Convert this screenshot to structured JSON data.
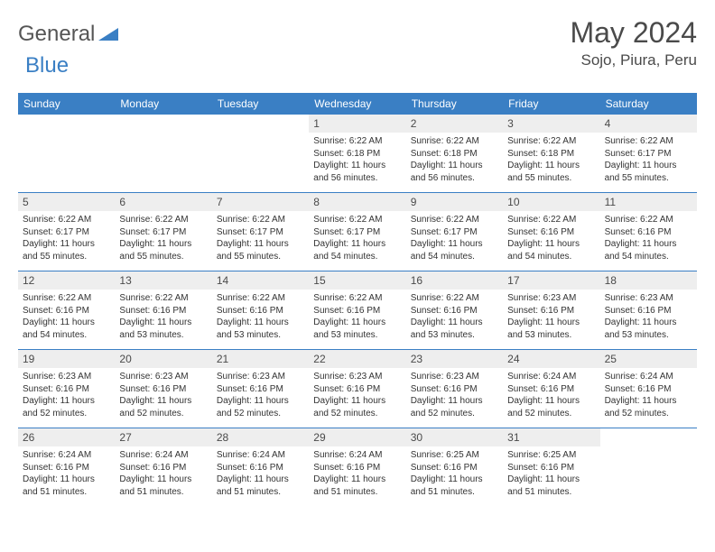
{
  "logo": {
    "part1": "General",
    "part2": "Blue"
  },
  "header": {
    "month_title": "May 2024",
    "location": "Sojo, Piura, Peru"
  },
  "colors": {
    "brand_blue": "#3a7fc4",
    "gray_bg": "#eeeeee",
    "text": "#333333",
    "white": "#ffffff"
  },
  "days_of_week": [
    "Sunday",
    "Monday",
    "Tuesday",
    "Wednesday",
    "Thursday",
    "Friday",
    "Saturday"
  ],
  "cells": [
    {
      "day": "",
      "sunrise": "",
      "sunset": "",
      "daylight": ""
    },
    {
      "day": "",
      "sunrise": "",
      "sunset": "",
      "daylight": ""
    },
    {
      "day": "",
      "sunrise": "",
      "sunset": "",
      "daylight": ""
    },
    {
      "day": "1",
      "sunrise": "Sunrise: 6:22 AM",
      "sunset": "Sunset: 6:18 PM",
      "daylight": "Daylight: 11 hours and 56 minutes."
    },
    {
      "day": "2",
      "sunrise": "Sunrise: 6:22 AM",
      "sunset": "Sunset: 6:18 PM",
      "daylight": "Daylight: 11 hours and 56 minutes."
    },
    {
      "day": "3",
      "sunrise": "Sunrise: 6:22 AM",
      "sunset": "Sunset: 6:18 PM",
      "daylight": "Daylight: 11 hours and 55 minutes."
    },
    {
      "day": "4",
      "sunrise": "Sunrise: 6:22 AM",
      "sunset": "Sunset: 6:17 PM",
      "daylight": "Daylight: 11 hours and 55 minutes."
    },
    {
      "day": "5",
      "sunrise": "Sunrise: 6:22 AM",
      "sunset": "Sunset: 6:17 PM",
      "daylight": "Daylight: 11 hours and 55 minutes."
    },
    {
      "day": "6",
      "sunrise": "Sunrise: 6:22 AM",
      "sunset": "Sunset: 6:17 PM",
      "daylight": "Daylight: 11 hours and 55 minutes."
    },
    {
      "day": "7",
      "sunrise": "Sunrise: 6:22 AM",
      "sunset": "Sunset: 6:17 PM",
      "daylight": "Daylight: 11 hours and 55 minutes."
    },
    {
      "day": "8",
      "sunrise": "Sunrise: 6:22 AM",
      "sunset": "Sunset: 6:17 PM",
      "daylight": "Daylight: 11 hours and 54 minutes."
    },
    {
      "day": "9",
      "sunrise": "Sunrise: 6:22 AM",
      "sunset": "Sunset: 6:17 PM",
      "daylight": "Daylight: 11 hours and 54 minutes."
    },
    {
      "day": "10",
      "sunrise": "Sunrise: 6:22 AM",
      "sunset": "Sunset: 6:16 PM",
      "daylight": "Daylight: 11 hours and 54 minutes."
    },
    {
      "day": "11",
      "sunrise": "Sunrise: 6:22 AM",
      "sunset": "Sunset: 6:16 PM",
      "daylight": "Daylight: 11 hours and 54 minutes."
    },
    {
      "day": "12",
      "sunrise": "Sunrise: 6:22 AM",
      "sunset": "Sunset: 6:16 PM",
      "daylight": "Daylight: 11 hours and 54 minutes."
    },
    {
      "day": "13",
      "sunrise": "Sunrise: 6:22 AM",
      "sunset": "Sunset: 6:16 PM",
      "daylight": "Daylight: 11 hours and 53 minutes."
    },
    {
      "day": "14",
      "sunrise": "Sunrise: 6:22 AM",
      "sunset": "Sunset: 6:16 PM",
      "daylight": "Daylight: 11 hours and 53 minutes."
    },
    {
      "day": "15",
      "sunrise": "Sunrise: 6:22 AM",
      "sunset": "Sunset: 6:16 PM",
      "daylight": "Daylight: 11 hours and 53 minutes."
    },
    {
      "day": "16",
      "sunrise": "Sunrise: 6:22 AM",
      "sunset": "Sunset: 6:16 PM",
      "daylight": "Daylight: 11 hours and 53 minutes."
    },
    {
      "day": "17",
      "sunrise": "Sunrise: 6:23 AM",
      "sunset": "Sunset: 6:16 PM",
      "daylight": "Daylight: 11 hours and 53 minutes."
    },
    {
      "day": "18",
      "sunrise": "Sunrise: 6:23 AM",
      "sunset": "Sunset: 6:16 PM",
      "daylight": "Daylight: 11 hours and 53 minutes."
    },
    {
      "day": "19",
      "sunrise": "Sunrise: 6:23 AM",
      "sunset": "Sunset: 6:16 PM",
      "daylight": "Daylight: 11 hours and 52 minutes."
    },
    {
      "day": "20",
      "sunrise": "Sunrise: 6:23 AM",
      "sunset": "Sunset: 6:16 PM",
      "daylight": "Daylight: 11 hours and 52 minutes."
    },
    {
      "day": "21",
      "sunrise": "Sunrise: 6:23 AM",
      "sunset": "Sunset: 6:16 PM",
      "daylight": "Daylight: 11 hours and 52 minutes."
    },
    {
      "day": "22",
      "sunrise": "Sunrise: 6:23 AM",
      "sunset": "Sunset: 6:16 PM",
      "daylight": "Daylight: 11 hours and 52 minutes."
    },
    {
      "day": "23",
      "sunrise": "Sunrise: 6:23 AM",
      "sunset": "Sunset: 6:16 PM",
      "daylight": "Daylight: 11 hours and 52 minutes."
    },
    {
      "day": "24",
      "sunrise": "Sunrise: 6:24 AM",
      "sunset": "Sunset: 6:16 PM",
      "daylight": "Daylight: 11 hours and 52 minutes."
    },
    {
      "day": "25",
      "sunrise": "Sunrise: 6:24 AM",
      "sunset": "Sunset: 6:16 PM",
      "daylight": "Daylight: 11 hours and 52 minutes."
    },
    {
      "day": "26",
      "sunrise": "Sunrise: 6:24 AM",
      "sunset": "Sunset: 6:16 PM",
      "daylight": "Daylight: 11 hours and 51 minutes."
    },
    {
      "day": "27",
      "sunrise": "Sunrise: 6:24 AM",
      "sunset": "Sunset: 6:16 PM",
      "daylight": "Daylight: 11 hours and 51 minutes."
    },
    {
      "day": "28",
      "sunrise": "Sunrise: 6:24 AM",
      "sunset": "Sunset: 6:16 PM",
      "daylight": "Daylight: 11 hours and 51 minutes."
    },
    {
      "day": "29",
      "sunrise": "Sunrise: 6:24 AM",
      "sunset": "Sunset: 6:16 PM",
      "daylight": "Daylight: 11 hours and 51 minutes."
    },
    {
      "day": "30",
      "sunrise": "Sunrise: 6:25 AM",
      "sunset": "Sunset: 6:16 PM",
      "daylight": "Daylight: 11 hours and 51 minutes."
    },
    {
      "day": "31",
      "sunrise": "Sunrise: 6:25 AM",
      "sunset": "Sunset: 6:16 PM",
      "daylight": "Daylight: 11 hours and 51 minutes."
    },
    {
      "day": "",
      "sunrise": "",
      "sunset": "",
      "daylight": ""
    }
  ]
}
